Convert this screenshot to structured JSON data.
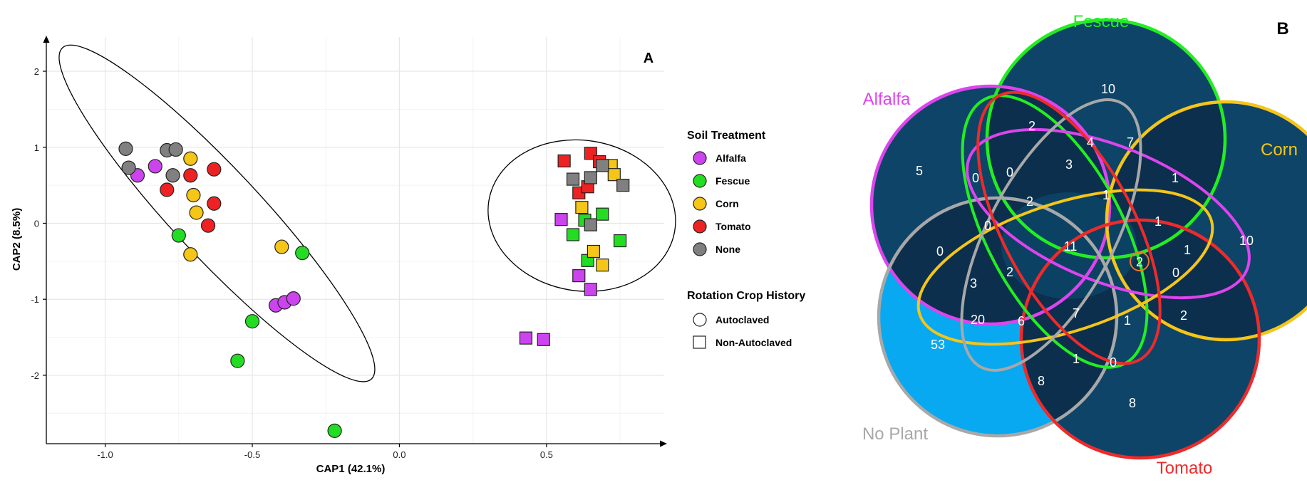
{
  "chart_data": [
    {
      "type": "scatter",
      "panel_label": "A",
      "xlabel": "CAP1 (42.1%)",
      "ylabel": "CAP2 (8.5%)",
      "xlim": [
        -1.2,
        0.9
      ],
      "ylim": [
        -2.9,
        2.45
      ],
      "xticks": [
        -1.0,
        -0.5,
        0.0,
        0.5
      ],
      "xtick_labels": [
        "-1.0",
        "-0.5",
        "0.0",
        "0.5"
      ],
      "yticks": [
        2,
        1,
        0,
        -1,
        -2
      ],
      "ytick_labels": [
        "2",
        "1",
        "0",
        "-1",
        "-2"
      ],
      "grid": true,
      "legend_treatment": {
        "title": "Soil Treatment",
        "items": [
          {
            "label": "Alfalfa",
            "color": "#cc44ee"
          },
          {
            "label": "Fescue",
            "color": "#22dd22"
          },
          {
            "label": "Corn",
            "color": "#f5c518"
          },
          {
            "label": "Tomato",
            "color": "#ee2222"
          },
          {
            "label": "None",
            "color": "#808080"
          }
        ]
      },
      "legend_history": {
        "title": "Rotation Crop History",
        "items": [
          {
            "label": "Autoclaved",
            "shape": "circle"
          },
          {
            "label": "Non-Autoclaved",
            "shape": "square"
          }
        ]
      },
      "ellipses": [
        {
          "center": [
            -0.62,
            0.13
          ],
          "rx_units": 0.77,
          "ry_units": 0.58,
          "angle_deg": 47
        },
        {
          "center": [
            0.62,
            0.1
          ],
          "rx_units": 0.32,
          "ry_units": 0.99,
          "angle_deg": 9
        }
      ],
      "series": [
        {
          "name": "Alfalfa",
          "shape": "circle",
          "points": [
            [
              -0.89,
              0.63
            ],
            [
              -0.83,
              0.75
            ],
            [
              -0.42,
              -1.08
            ],
            [
              -0.39,
              -1.04
            ],
            [
              -0.36,
              -0.99
            ]
          ]
        },
        {
          "name": "Alfalfa",
          "shape": "square",
          "points": [
            [
              0.55,
              0.05
            ],
            [
              0.61,
              -0.69
            ],
            [
              0.65,
              -0.87
            ],
            [
              0.43,
              -1.51
            ],
            [
              0.49,
              -1.53
            ]
          ]
        },
        {
          "name": "Fescue",
          "shape": "circle",
          "points": [
            [
              -0.75,
              -0.16
            ],
            [
              -0.33,
              -0.39
            ],
            [
              -0.5,
              -1.29
            ],
            [
              -0.55,
              -1.81
            ],
            [
              -0.22,
              -2.73
            ]
          ]
        },
        {
          "name": "Fescue",
          "shape": "square",
          "points": [
            [
              0.59,
              -0.15
            ],
            [
              0.63,
              0.04
            ],
            [
              0.64,
              -0.49
            ],
            [
              0.69,
              0.12
            ],
            [
              0.75,
              -0.23
            ]
          ]
        },
        {
          "name": "Corn",
          "shape": "circle",
          "points": [
            [
              -0.71,
              0.85
            ],
            [
              -0.7,
              0.37
            ],
            [
              -0.69,
              0.14
            ],
            [
              -0.71,
              -0.41
            ],
            [
              -0.4,
              -0.31
            ]
          ]
        },
        {
          "name": "Corn",
          "shape": "square",
          "points": [
            [
              0.62,
              0.21
            ],
            [
              0.66,
              -0.37
            ],
            [
              0.69,
              -0.55
            ],
            [
              0.72,
              0.76
            ],
            [
              0.73,
              0.64
            ]
          ]
        },
        {
          "name": "Tomato",
          "shape": "circle",
          "points": [
            [
              -0.79,
              0.44
            ],
            [
              -0.71,
              0.63
            ],
            [
              -0.63,
              0.71
            ],
            [
              -0.63,
              0.26
            ],
            [
              -0.65,
              -0.03
            ]
          ]
        },
        {
          "name": "Tomato",
          "shape": "square",
          "points": [
            [
              0.56,
              0.82
            ],
            [
              0.61,
              0.4
            ],
            [
              0.64,
              0.48
            ],
            [
              0.65,
              0.92
            ],
            [
              0.68,
              0.81
            ]
          ]
        },
        {
          "name": "None",
          "shape": "circle",
          "points": [
            [
              -0.93,
              0.98
            ],
            [
              -0.92,
              0.73
            ],
            [
              -0.79,
              0.96
            ],
            [
              -0.76,
              0.97
            ],
            [
              -0.77,
              0.63
            ]
          ]
        },
        {
          "name": "None",
          "shape": "square",
          "points": [
            [
              0.59,
              0.58
            ],
            [
              0.65,
              0.6
            ],
            [
              0.65,
              -0.02
            ],
            [
              0.69,
              0.76
            ],
            [
              0.76,
              0.5
            ]
          ]
        }
      ]
    },
    {
      "type": "venn",
      "panel_label": "B",
      "sets": [
        {
          "name": "Fescue",
          "color": "#22ee22"
        },
        {
          "name": "Alfalfa",
          "color": "#dd44ee"
        },
        {
          "name": "Corn",
          "color": "#f5c518"
        },
        {
          "name": "No Plant",
          "color": "#a8a8a8"
        },
        {
          "name": "Tomato",
          "color": "#ee2a2a"
        }
      ],
      "counts": [
        "10",
        "5",
        "2",
        "10",
        "53",
        "8",
        "0",
        "0",
        "3",
        "4",
        "7",
        "1",
        "1",
        "2",
        "0",
        "1",
        "1",
        "0",
        "0",
        "11",
        "3",
        "2",
        "2",
        "20",
        "6",
        "7",
        "1",
        "2",
        "8",
        "1",
        "0"
      ],
      "highlighted_count": "2"
    }
  ]
}
